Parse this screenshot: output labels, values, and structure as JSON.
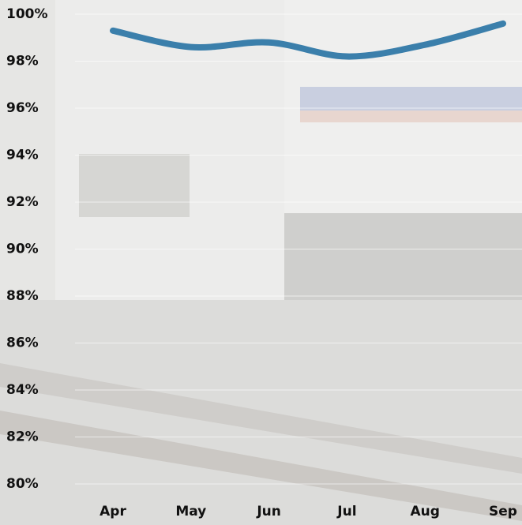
{
  "chart_data": {
    "type": "line",
    "categories": [
      "Apr",
      "May",
      "Jun",
      "Jul",
      "Aug",
      "Sep"
    ],
    "values": [
      99.3,
      98.6,
      98.8,
      98.2,
      98.7,
      99.6
    ],
    "color": "#3b7fab",
    "ylim": [
      80,
      100
    ],
    "yticks": [
      {
        "value": 80,
        "label": "80%"
      },
      {
        "value": 82,
        "label": "82%"
      },
      {
        "value": 84,
        "label": "84%"
      },
      {
        "value": 86,
        "label": "86%"
      },
      {
        "value": 88,
        "label": "88%"
      },
      {
        "value": 90,
        "label": "90%"
      },
      {
        "value": 92,
        "label": "92%"
      },
      {
        "value": 94,
        "label": "94%"
      },
      {
        "value": 96,
        "label": "96%"
      },
      {
        "value": 98,
        "label": "98%"
      },
      {
        "value": 100,
        "label": "100%"
      }
    ],
    "grid": true
  }
}
